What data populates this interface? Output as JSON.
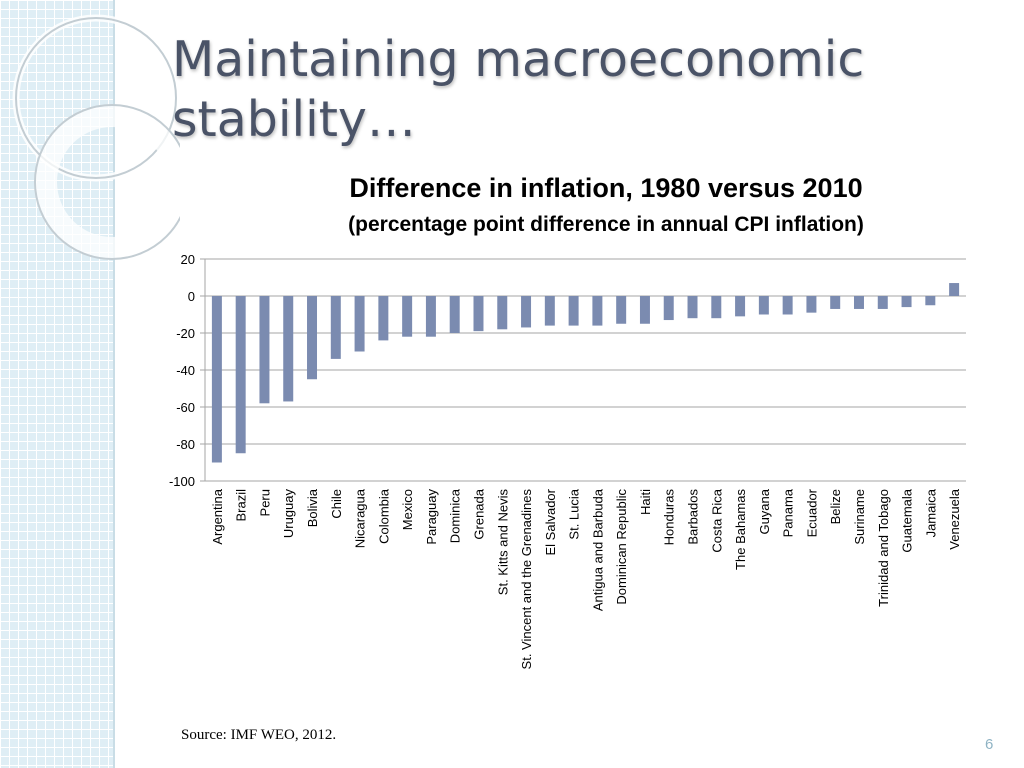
{
  "slide": {
    "title_line1": "Maintaining macroeconomic",
    "title_line2": "stability…",
    "source": "Source: IMF WEO, 2012.",
    "page_number": "6"
  },
  "colors": {
    "bar": "#7b8bb0",
    "gridline": "#a6a6a6",
    "title": "#4a5367",
    "sidebar": "#dfeef5"
  },
  "chart_data": {
    "type": "bar",
    "title": "Difference in inflation, 1980 versus 2010",
    "subtitle": "(percentage point difference in annual CPI inflation)",
    "xlabel": "",
    "ylabel": "",
    "ylim": [
      -100,
      20
    ],
    "yticks": [
      20,
      0,
      -20,
      -40,
      -60,
      -80,
      -100
    ],
    "grid": true,
    "legend": "none",
    "categories": [
      "Argentina",
      "Brazil",
      "Peru",
      "Uruguay",
      "Bolivia",
      "Chile",
      "Nicaragua",
      "Colombia",
      "Mexico",
      "Paraguay",
      "Dominica",
      "Grenada",
      "St. Kitts and Nevis",
      "St. Vincent and the Grenadines",
      "El Salvador",
      "St. Lucia",
      "Antigua and Barbuda",
      "Dominican Republic",
      "Haiti",
      "Honduras",
      "Barbados",
      "Costa Rica",
      "The Bahamas",
      "Guyana",
      "Panama",
      "Ecuador",
      "Belize",
      "Suriname",
      "Trinidad and Tobago",
      "Guatemala",
      "Jamaica",
      "Venezuela"
    ],
    "values": [
      -90,
      -85,
      -58,
      -57,
      -45,
      -34,
      -30,
      -24,
      -22,
      -22,
      -20,
      -19,
      -18,
      -17,
      -16,
      -16,
      -16,
      -15,
      -15,
      -13,
      -12,
      -12,
      -11,
      -10,
      -10,
      -9,
      -7,
      -7,
      -7,
      -6,
      -5,
      7
    ]
  }
}
